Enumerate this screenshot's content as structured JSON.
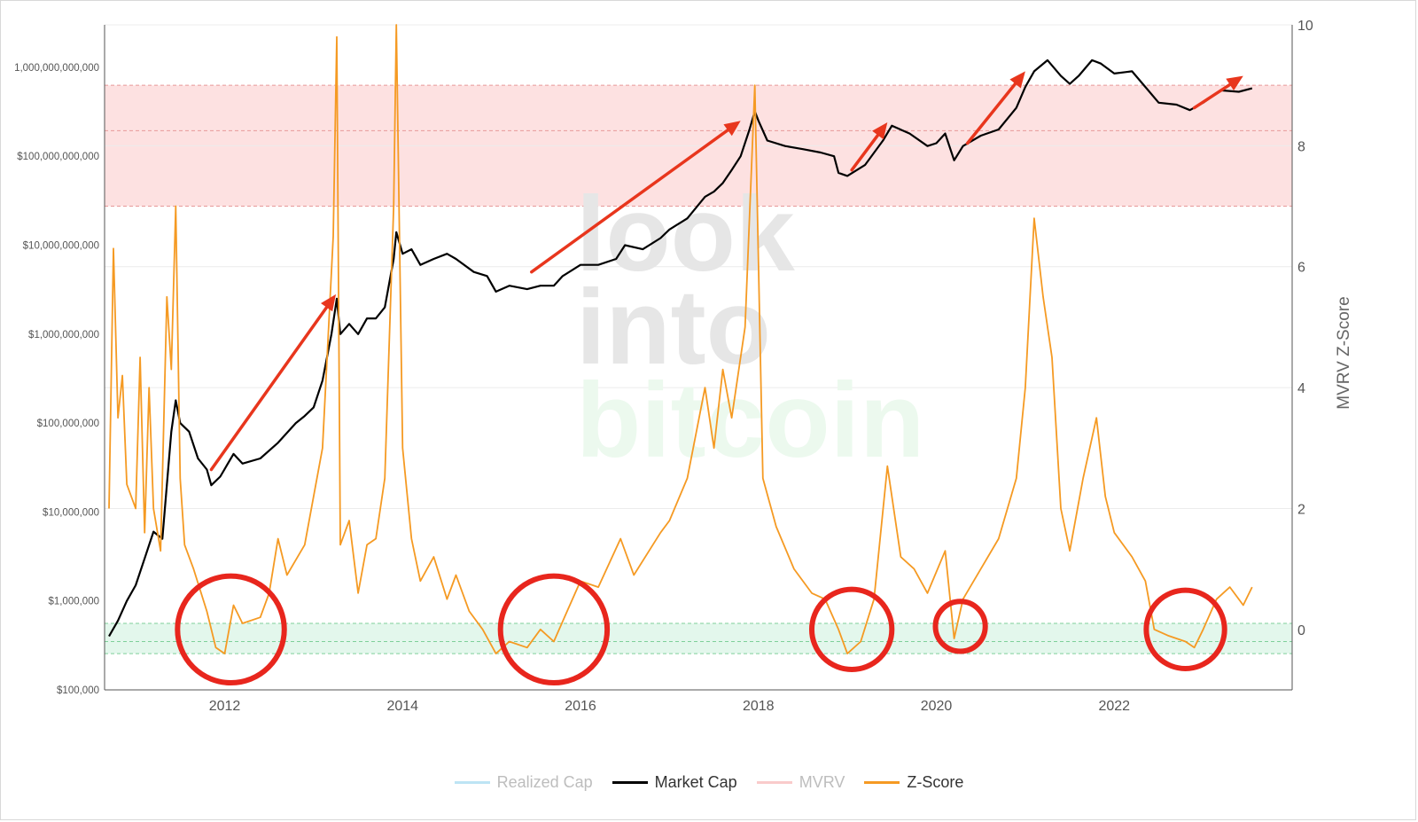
{
  "chart_data": {
    "type": "line",
    "title": "",
    "watermark": [
      "look",
      "into",
      "bitcoin"
    ],
    "x_range": [
      2010.65,
      2024.0
    ],
    "x_ticks": [
      "2012",
      "2014",
      "2016",
      "2018",
      "2020",
      "2022"
    ],
    "x_tick_values": [
      2012,
      2014,
      2016,
      2018,
      2020,
      2022
    ],
    "left_axis": {
      "scale": "log",
      "range": [
        100000,
        3000000000000
      ],
      "tick_labels": [
        "$100,000",
        "$1,000,000",
        "$10,000,000",
        "$100,000,000",
        "$1,000,000,000",
        "$10,000,000,000",
        "$100,000,000,000",
        "1,000,000,000,000"
      ],
      "tick_values": [
        100000,
        1000000,
        10000000,
        100000000,
        1000000000,
        10000000000,
        100000000000,
        1000000000000
      ]
    },
    "right_axis": {
      "label": "MVRV Z-Score",
      "range": [
        -1,
        10
      ],
      "tick_labels": [
        "0",
        "2",
        "4",
        "6",
        "8",
        "10"
      ],
      "tick_values": [
        0,
        2,
        4,
        6,
        8,
        10
      ]
    },
    "bands": [
      {
        "name": "red-zone",
        "z_from": 7,
        "z_to": 9,
        "color": "#fde1e1",
        "dashed_lines_z": [
          7,
          8.25,
          9
        ]
      },
      {
        "name": "green-zone",
        "z_from": -0.4,
        "z_to": 0.1,
        "color": "#e3f7ec",
        "dashed_lines_z": [
          -0.4,
          -0.2,
          0.1
        ]
      }
    ],
    "series": [
      {
        "name": "Market Cap",
        "axis": "left",
        "color": "#000000",
        "points": [
          [
            2010.7,
            400000
          ],
          [
            2010.8,
            600000
          ],
          [
            2010.9,
            1000000
          ],
          [
            2011.0,
            1500000
          ],
          [
            2011.1,
            3000000
          ],
          [
            2011.2,
            6000000
          ],
          [
            2011.3,
            5000000
          ],
          [
            2011.4,
            80000000
          ],
          [
            2011.45,
            180000000
          ],
          [
            2011.5,
            100000000
          ],
          [
            2011.6,
            80000000
          ],
          [
            2011.7,
            40000000
          ],
          [
            2011.8,
            30000000
          ],
          [
            2011.85,
            20000000
          ],
          [
            2011.95,
            25000000
          ],
          [
            2012.1,
            45000000
          ],
          [
            2012.2,
            35000000
          ],
          [
            2012.4,
            40000000
          ],
          [
            2012.6,
            60000000
          ],
          [
            2012.8,
            100000000
          ],
          [
            2012.9,
            120000000
          ],
          [
            2013.0,
            150000000
          ],
          [
            2013.1,
            300000000
          ],
          [
            2013.2,
            1000000000
          ],
          [
            2013.26,
            2500000000
          ],
          [
            2013.3,
            1000000000
          ],
          [
            2013.4,
            1300000000
          ],
          [
            2013.5,
            1000000000
          ],
          [
            2013.6,
            1500000000
          ],
          [
            2013.7,
            1500000000
          ],
          [
            2013.8,
            2000000000
          ],
          [
            2013.9,
            7000000000
          ],
          [
            2013.93,
            14000000000
          ],
          [
            2014.0,
            8000000000
          ],
          [
            2014.1,
            9000000000
          ],
          [
            2014.2,
            6000000000
          ],
          [
            2014.35,
            7000000000
          ],
          [
            2014.5,
            8000000000
          ],
          [
            2014.6,
            7000000000
          ],
          [
            2014.8,
            5000000000
          ],
          [
            2014.95,
            4500000000
          ],
          [
            2015.05,
            3000000000
          ],
          [
            2015.2,
            3500000000
          ],
          [
            2015.4,
            3200000000
          ],
          [
            2015.55,
            3500000000
          ],
          [
            2015.7,
            3500000000
          ],
          [
            2015.8,
            4500000000
          ],
          [
            2016.0,
            6000000000
          ],
          [
            2016.2,
            6000000000
          ],
          [
            2016.4,
            7000000000
          ],
          [
            2016.5,
            10000000000
          ],
          [
            2016.7,
            9000000000
          ],
          [
            2016.9,
            12000000000
          ],
          [
            2017.0,
            15000000000
          ],
          [
            2017.2,
            20000000000
          ],
          [
            2017.4,
            35000000000
          ],
          [
            2017.5,
            40000000000
          ],
          [
            2017.6,
            50000000000
          ],
          [
            2017.7,
            70000000000
          ],
          [
            2017.8,
            100000000000
          ],
          [
            2017.9,
            200000000000
          ],
          [
            2017.96,
            320000000000
          ],
          [
            2018.0,
            250000000000
          ],
          [
            2018.1,
            150000000000
          ],
          [
            2018.3,
            130000000000
          ],
          [
            2018.5,
            120000000000
          ],
          [
            2018.7,
            110000000000
          ],
          [
            2018.85,
            100000000000
          ],
          [
            2018.9,
            65000000000
          ],
          [
            2019.0,
            60000000000
          ],
          [
            2019.2,
            80000000000
          ],
          [
            2019.4,
            150000000000
          ],
          [
            2019.5,
            220000000000
          ],
          [
            2019.7,
            180000000000
          ],
          [
            2019.9,
            130000000000
          ],
          [
            2020.0,
            140000000000
          ],
          [
            2020.1,
            180000000000
          ],
          [
            2020.2,
            90000000000
          ],
          [
            2020.3,
            130000000000
          ],
          [
            2020.5,
            170000000000
          ],
          [
            2020.7,
            200000000000
          ],
          [
            2020.9,
            350000000000
          ],
          [
            2021.0,
            600000000000
          ],
          [
            2021.1,
            900000000000
          ],
          [
            2021.25,
            1200000000000
          ],
          [
            2021.4,
            800000000000
          ],
          [
            2021.5,
            650000000000
          ],
          [
            2021.6,
            800000000000
          ],
          [
            2021.75,
            1200000000000
          ],
          [
            2021.85,
            1100000000000
          ],
          [
            2022.0,
            850000000000
          ],
          [
            2022.2,
            900000000000
          ],
          [
            2022.35,
            600000000000
          ],
          [
            2022.5,
            400000000000
          ],
          [
            2022.7,
            380000000000
          ],
          [
            2022.85,
            330000000000
          ],
          [
            2023.0,
            400000000000
          ],
          [
            2023.2,
            550000000000
          ],
          [
            2023.4,
            530000000000
          ],
          [
            2023.55,
            580000000000
          ]
        ]
      },
      {
        "name": "Z-Score",
        "axis": "right",
        "color": "#f59a23",
        "points": [
          [
            2010.7,
            2.0
          ],
          [
            2010.75,
            6.3
          ],
          [
            2010.8,
            3.5
          ],
          [
            2010.85,
            4.2
          ],
          [
            2010.9,
            2.4
          ],
          [
            2011.0,
            2.0
          ],
          [
            2011.05,
            4.5
          ],
          [
            2011.1,
            1.6
          ],
          [
            2011.15,
            4.0
          ],
          [
            2011.2,
            2.0
          ],
          [
            2011.28,
            1.3
          ],
          [
            2011.35,
            5.5
          ],
          [
            2011.4,
            4.3
          ],
          [
            2011.45,
            7.0
          ],
          [
            2011.5,
            2.5
          ],
          [
            2011.55,
            1.4
          ],
          [
            2011.65,
            1.0
          ],
          [
            2011.8,
            0.3
          ],
          [
            2011.9,
            -0.3
          ],
          [
            2012.0,
            -0.4
          ],
          [
            2012.1,
            0.4
          ],
          [
            2012.2,
            0.1
          ],
          [
            2012.4,
            0.2
          ],
          [
            2012.5,
            0.6
          ],
          [
            2012.6,
            1.5
          ],
          [
            2012.7,
            0.9
          ],
          [
            2012.9,
            1.4
          ],
          [
            2013.1,
            3.0
          ],
          [
            2013.22,
            6.5
          ],
          [
            2013.26,
            9.8
          ],
          [
            2013.3,
            1.4
          ],
          [
            2013.4,
            1.8
          ],
          [
            2013.5,
            0.6
          ],
          [
            2013.6,
            1.4
          ],
          [
            2013.7,
            1.5
          ],
          [
            2013.8,
            2.5
          ],
          [
            2013.9,
            7.0
          ],
          [
            2013.93,
            10.0
          ],
          [
            2014.0,
            3.0
          ],
          [
            2014.1,
            1.5
          ],
          [
            2014.2,
            0.8
          ],
          [
            2014.35,
            1.2
          ],
          [
            2014.5,
            0.5
          ],
          [
            2014.6,
            0.9
          ],
          [
            2014.75,
            0.3
          ],
          [
            2014.9,
            0.0
          ],
          [
            2015.05,
            -0.4
          ],
          [
            2015.2,
            -0.2
          ],
          [
            2015.4,
            -0.3
          ],
          [
            2015.55,
            0.0
          ],
          [
            2015.7,
            -0.2
          ],
          [
            2015.85,
            0.3
          ],
          [
            2016.0,
            0.8
          ],
          [
            2016.2,
            0.7
          ],
          [
            2016.45,
            1.5
          ],
          [
            2016.6,
            0.9
          ],
          [
            2016.9,
            1.6
          ],
          [
            2017.0,
            1.8
          ],
          [
            2017.2,
            2.5
          ],
          [
            2017.4,
            4.0
          ],
          [
            2017.5,
            3.0
          ],
          [
            2017.6,
            4.3
          ],
          [
            2017.7,
            3.5
          ],
          [
            2017.85,
            5.0
          ],
          [
            2017.96,
            9.0
          ],
          [
            2018.05,
            2.5
          ],
          [
            2018.2,
            1.7
          ],
          [
            2018.4,
            1.0
          ],
          [
            2018.6,
            0.6
          ],
          [
            2018.75,
            0.5
          ],
          [
            2018.9,
            0.0
          ],
          [
            2019.0,
            -0.4
          ],
          [
            2019.15,
            -0.2
          ],
          [
            2019.3,
            0.5
          ],
          [
            2019.45,
            2.7
          ],
          [
            2019.6,
            1.2
          ],
          [
            2019.75,
            1.0
          ],
          [
            2019.9,
            0.6
          ],
          [
            2020.1,
            1.3
          ],
          [
            2020.2,
            -0.15
          ],
          [
            2020.3,
            0.5
          ],
          [
            2020.5,
            1.0
          ],
          [
            2020.7,
            1.5
          ],
          [
            2020.9,
            2.5
          ],
          [
            2021.0,
            4.0
          ],
          [
            2021.1,
            6.8
          ],
          [
            2021.2,
            5.5
          ],
          [
            2021.3,
            4.5
          ],
          [
            2021.4,
            2.0
          ],
          [
            2021.5,
            1.3
          ],
          [
            2021.65,
            2.5
          ],
          [
            2021.8,
            3.5
          ],
          [
            2021.9,
            2.2
          ],
          [
            2022.0,
            1.6
          ],
          [
            2022.2,
            1.2
          ],
          [
            2022.35,
            0.8
          ],
          [
            2022.45,
            0.0
          ],
          [
            2022.6,
            -0.1
          ],
          [
            2022.8,
            -0.2
          ],
          [
            2022.9,
            -0.3
          ],
          [
            2023.0,
            0.0
          ],
          [
            2023.15,
            0.5
          ],
          [
            2023.3,
            0.7
          ],
          [
            2023.45,
            0.4
          ],
          [
            2023.55,
            0.7
          ]
        ]
      }
    ],
    "annotations": {
      "arrows_color": "#e8361d",
      "circles_color": "#e8261d",
      "arrows": [
        {
          "from": [
            2011.85,
            30000000
          ],
          "to": [
            2013.25,
            2800000000
          ]
        },
        {
          "from": [
            2015.45,
            5000000000
          ],
          "to": [
            2017.8,
            250000000000
          ]
        },
        {
          "from": [
            2019.05,
            70000000000
          ],
          "to": [
            2019.45,
            240000000000
          ]
        },
        {
          "from": [
            2020.35,
            140000000000
          ],
          "to": [
            2021.0,
            900000000000
          ]
        },
        {
          "from": [
            2022.9,
            350000000000
          ],
          "to": [
            2023.45,
            800000000000
          ]
        }
      ],
      "circles": [
        {
          "center": [
            2012.07,
            0.0
          ],
          "r_years": 0.6
        },
        {
          "center": [
            2015.7,
            0.0
          ],
          "r_years": 0.6
        },
        {
          "center": [
            2019.05,
            0.0
          ],
          "r_years": 0.45
        },
        {
          "center": [
            2020.27,
            0.05
          ],
          "r_years": 0.28
        },
        {
          "center": [
            2022.8,
            0.0
          ],
          "r_years": 0.44
        }
      ]
    },
    "legend": {
      "placement": "bottom-center",
      "items": [
        {
          "label": "Realized Cap",
          "color": "#87ceeb",
          "muted": true
        },
        {
          "label": "Market Cap",
          "color": "#000000",
          "muted": false
        },
        {
          "label": "MVRV",
          "color": "#f4a0a0",
          "muted": true
        },
        {
          "label": "Z-Score",
          "color": "#f59a23",
          "muted": false
        }
      ]
    }
  }
}
